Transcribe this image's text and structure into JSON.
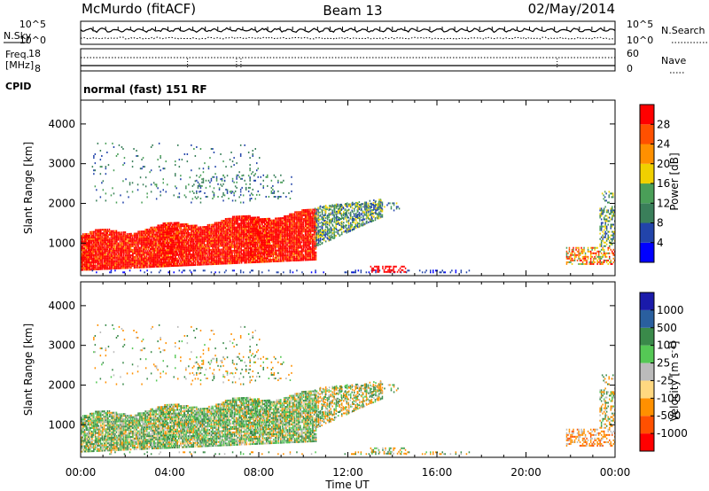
{
  "header": {
    "station": "McMurdo (fitACF)",
    "beam": "Beam 13",
    "date": "02/May/2014"
  },
  "top_panels": {
    "nsky_label": "N.Sky",
    "nsearch_label": "N.Search",
    "nsky_ticks": [
      "10^5",
      "10^0"
    ],
    "nsearch_ticks": [
      "10^5",
      "10^0"
    ],
    "freq_label_1": "Freq.",
    "freq_label_2": "[MHz]",
    "freq_ticks": [
      "18",
      "8"
    ],
    "nave_label": "Nave",
    "nave_ticks": [
      "60",
      "0"
    ],
    "cpid_label": "CPID",
    "cpid_text": "normal (fast) 151 RF"
  },
  "colors": {
    "power": [
      "#0000ff",
      "#2244aa",
      "#3a7f5a",
      "#4a9f58",
      "#f0d000",
      "#ff9000",
      "#ff5000",
      "#ff0000"
    ],
    "velocity": [
      "#ff0000",
      "#ff5000",
      "#ff9000",
      "#ffd880",
      "#bbbbbb",
      "#55c855",
      "#3a8a4a",
      "#2a5f9f",
      "#1a1aaa"
    ]
  },
  "chart_data": [
    {
      "type": "heatmap",
      "title": "",
      "xlabel": "Time UT",
      "ylabel": "Slant Range [km]",
      "x_ticks": [
        "00:00",
        "04:00",
        "08:00",
        "12:00",
        "16:00",
        "20:00",
        "00:00"
      ],
      "y_ticks": [
        1000,
        2000,
        3000,
        4000
      ],
      "ylim": [
        180,
        4600
      ],
      "xlim_hours": [
        0,
        24
      ],
      "colorbar_label": "Power [dB]",
      "colorbar_ticks": [
        "4",
        "8",
        "12",
        "16",
        "20",
        "24",
        "28"
      ],
      "colorbar_range": [
        0,
        32
      ]
    },
    {
      "type": "heatmap",
      "title": "",
      "xlabel": "Time UT",
      "ylabel": "Slant Range [km]",
      "x_ticks": [
        "00:00",
        "04:00",
        "08:00",
        "12:00",
        "16:00",
        "20:00",
        "00:00"
      ],
      "y_ticks": [
        1000,
        2000,
        3000,
        4000
      ],
      "ylim": [
        180,
        4600
      ],
      "xlim_hours": [
        0,
        24
      ],
      "colorbar_label": "Velocity [m s",
      "colorbar_label_sup": "-1",
      "colorbar_label_end": "]",
      "colorbar_ticks": [
        "1000",
        "500",
        "100",
        "25",
        "-25",
        "-100",
        "-500",
        "-1000"
      ]
    }
  ]
}
